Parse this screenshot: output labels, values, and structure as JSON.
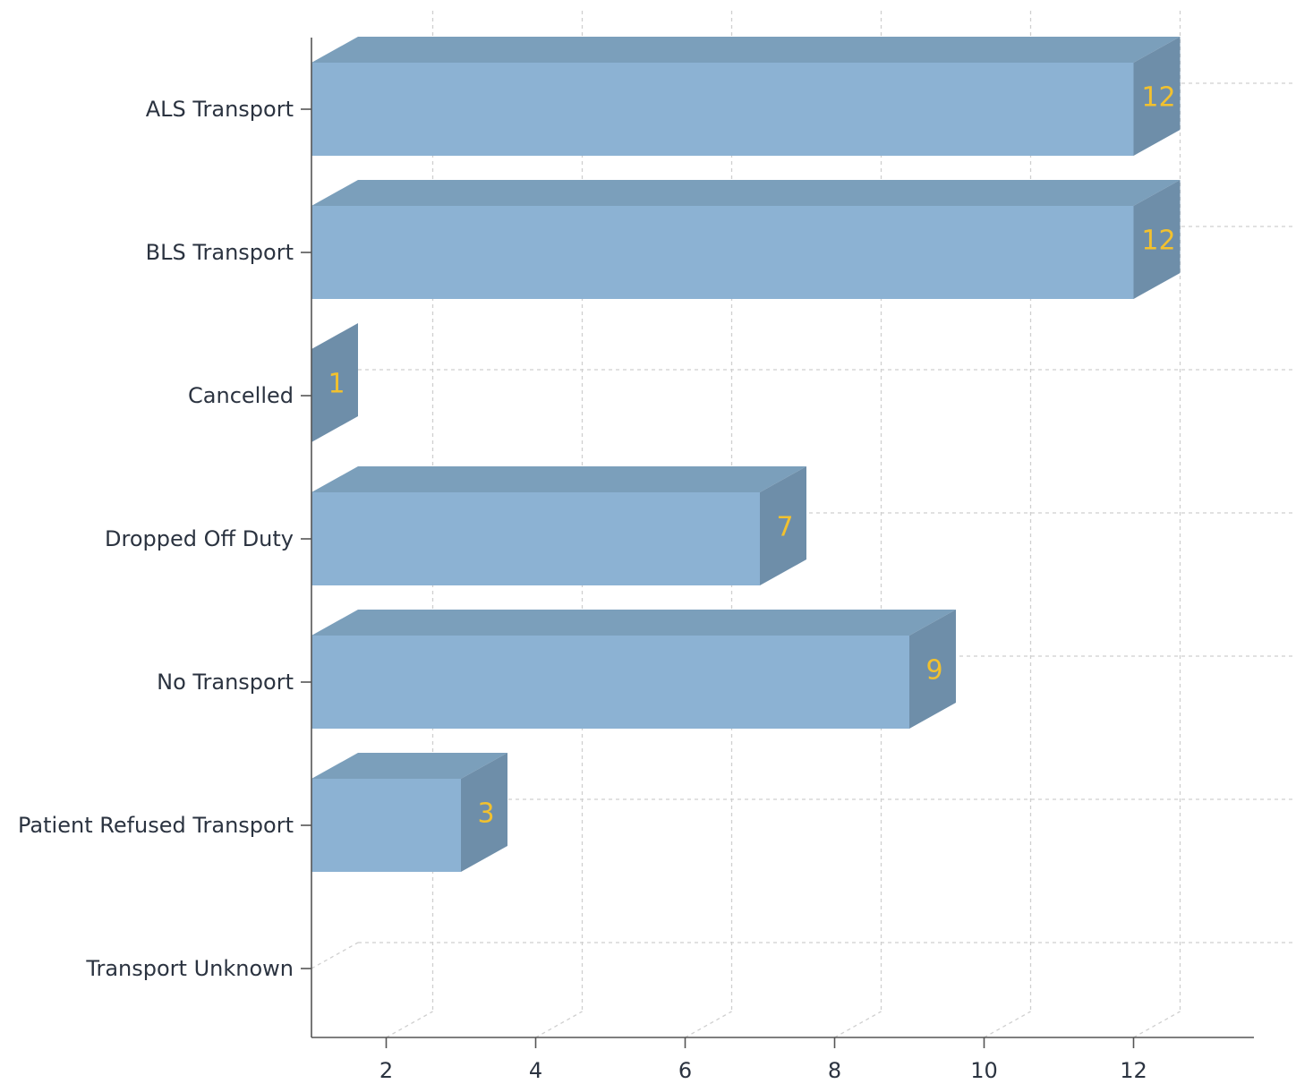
{
  "chart_data": {
    "type": "bar",
    "orientation": "horizontal",
    "style": "3d",
    "categories": [
      "ALS Transport",
      "BLS Transport",
      "Cancelled",
      "Dropped Off Duty",
      "No Transport",
      "Patient Refused Transport",
      "Transport Unknown"
    ],
    "values": [
      12,
      12,
      1,
      7,
      9,
      3,
      0
    ],
    "data_labels": [
      "12",
      "12",
      "1",
      "7",
      "9",
      "3",
      ""
    ],
    "x_ticks": [
      2,
      4,
      6,
      8,
      10,
      12
    ],
    "x_tick_labels": [
      "2",
      "4",
      "6",
      "8",
      "10",
      "12"
    ],
    "xlim": [
      1,
      13.6
    ],
    "title": "",
    "xlabel": "",
    "ylabel": "",
    "grid": true,
    "legend": "none",
    "colors": {
      "bar_front": "#8cb2d3",
      "bar_top": "#7b9fbb",
      "bar_side": "#6e8ea9",
      "data_label": "#f2c12e",
      "axis": "#555555",
      "grid": "#cfcfcf",
      "text": "#2b3340"
    }
  }
}
